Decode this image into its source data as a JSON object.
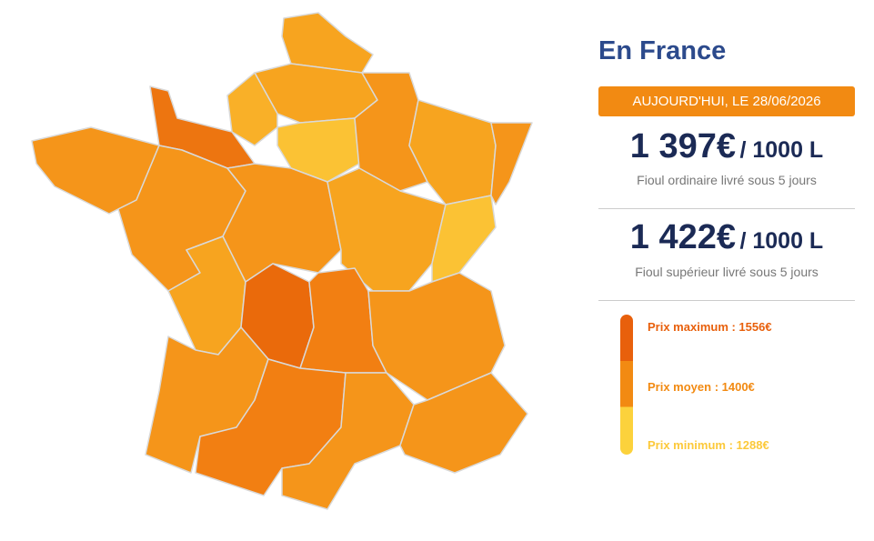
{
  "header": {
    "title": "En France",
    "date": "AUJOURD'HUI, LE 28/06/2026"
  },
  "prices": [
    {
      "price": "1 397€",
      "unit": "/ 1000 L",
      "description": "Fioul ordinaire livré sous 5 jours"
    },
    {
      "price": "1 422€",
      "unit": "/ 1000 L",
      "description": "Fioul supérieur livré sous 5 jours"
    }
  ],
  "legend": {
    "max": "Prix maximum : 1556€",
    "mean": "Prix moyen : 1400€",
    "min": "Prix minimum : 1288€"
  }
}
